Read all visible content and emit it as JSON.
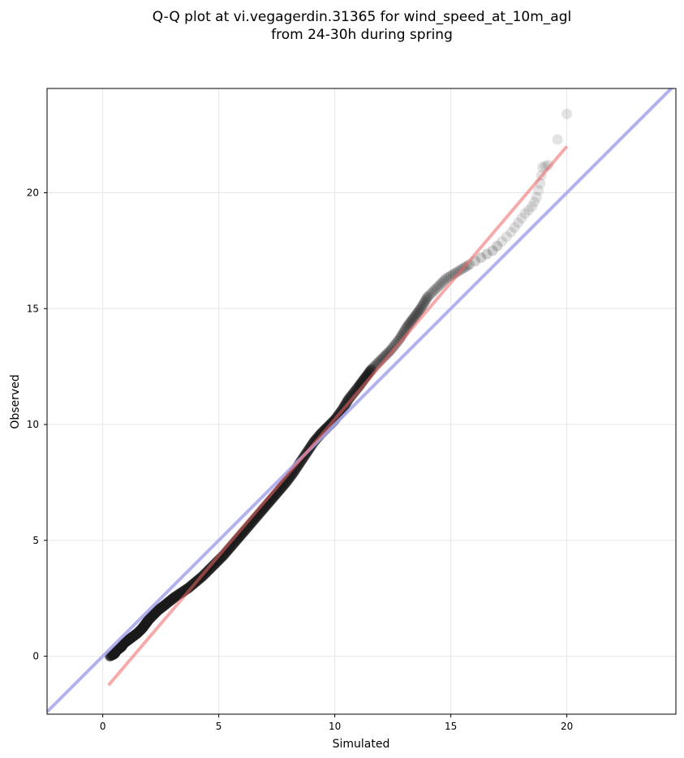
{
  "chart_data": {
    "type": "scatter",
    "title_line1": "Q-Q plot at vi.vegagerdin.31365 for wind_speed_at_10m_agl",
    "title_line2": "from 24-30h during spring",
    "xlabel": "Simulated",
    "ylabel": "Observed",
    "xlim": [
      -2.4,
      24.7
    ],
    "ylim": [
      -2.5,
      24.5
    ],
    "xticks": [
      0,
      5,
      10,
      15,
      20
    ],
    "yticks": [
      0,
      5,
      10,
      15,
      20
    ],
    "grid": true,
    "colors": {
      "points": "#1a1a1a",
      "identity_line": "#aaaaee",
      "fit_line": "#f5a9a9"
    },
    "identity_line": {
      "x": [
        -2.4,
        24.7
      ],
      "y": [
        -2.4,
        24.7
      ]
    },
    "fit_line": {
      "x": [
        0.25,
        20.0
      ],
      "y": [
        -1.25,
        22.0
      ]
    },
    "points": [
      [
        0.3,
        0.0
      ],
      [
        0.5,
        0.1
      ],
      [
        0.6,
        0.25
      ],
      [
        0.8,
        0.4
      ],
      [
        0.9,
        0.55
      ],
      [
        1.1,
        0.7
      ],
      [
        1.3,
        0.85
      ],
      [
        1.5,
        1.0
      ],
      [
        1.7,
        1.2
      ],
      [
        1.85,
        1.4
      ],
      [
        2.0,
        1.6
      ],
      [
        2.2,
        1.8
      ],
      [
        2.4,
        2.0
      ],
      [
        2.6,
        2.15
      ],
      [
        2.85,
        2.35
      ],
      [
        3.1,
        2.55
      ],
      [
        3.4,
        2.75
      ],
      [
        3.7,
        2.95
      ],
      [
        4.0,
        3.2
      ],
      [
        4.3,
        3.45
      ],
      [
        4.6,
        3.75
      ],
      [
        4.9,
        4.05
      ],
      [
        5.2,
        4.35
      ],
      [
        5.5,
        4.7
      ],
      [
        5.8,
        5.05
      ],
      [
        6.1,
        5.4
      ],
      [
        6.4,
        5.75
      ],
      [
        6.7,
        6.1
      ],
      [
        7.0,
        6.45
      ],
      [
        7.3,
        6.8
      ],
      [
        7.6,
        7.15
      ],
      [
        7.9,
        7.5
      ],
      [
        8.2,
        7.9
      ],
      [
        8.5,
        8.35
      ],
      [
        8.8,
        8.8
      ],
      [
        9.1,
        9.25
      ],
      [
        9.4,
        9.6
      ],
      [
        9.7,
        9.9
      ],
      [
        10.0,
        10.2
      ],
      [
        10.3,
        10.6
      ],
      [
        10.6,
        11.1
      ],
      [
        11.0,
        11.6
      ],
      [
        11.3,
        12.0
      ],
      [
        11.6,
        12.4
      ],
      [
        12.0,
        12.8
      ],
      [
        12.4,
        13.2
      ],
      [
        12.8,
        13.7
      ],
      [
        13.1,
        14.2
      ],
      [
        13.4,
        14.6
      ],
      [
        13.7,
        15.0
      ],
      [
        14.0,
        15.5
      ],
      [
        14.4,
        15.9
      ],
      [
        14.8,
        16.3
      ],
      [
        15.3,
        16.6
      ],
      [
        15.8,
        16.9
      ],
      [
        16.3,
        17.2
      ],
      [
        16.8,
        17.5
      ],
      [
        17.2,
        17.9
      ],
      [
        17.6,
        18.3
      ],
      [
        17.9,
        18.7
      ],
      [
        18.2,
        19.1
      ],
      [
        18.5,
        19.4
      ],
      [
        18.7,
        19.8
      ],
      [
        18.85,
        20.4
      ],
      [
        18.95,
        21.1
      ],
      [
        19.2,
        21.2
      ],
      [
        20.0,
        23.4
      ]
    ]
  }
}
